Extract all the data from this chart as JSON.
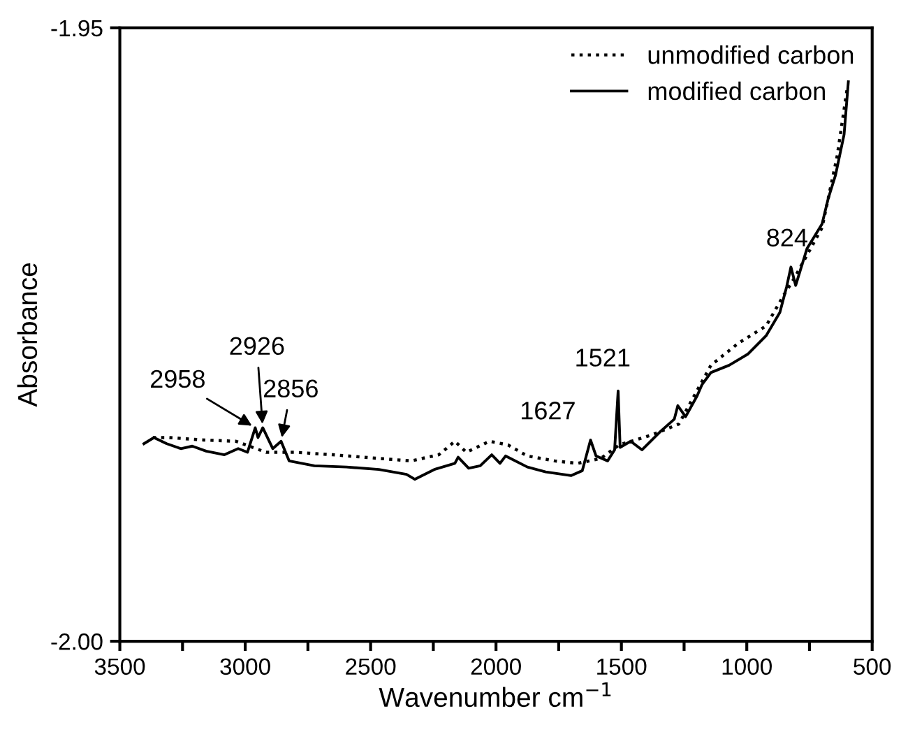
{
  "chart_data": {
    "type": "line",
    "xlabel": "Wavenumber cm$^{−1}$",
    "ylabel": "Absorbance",
    "xlim": [
      3500,
      500
    ],
    "ylim": [
      -2.0,
      -1.95
    ],
    "xticks": [
      3500,
      {
        "value": 3250,
        "label": null
      },
      3000,
      {
        "value": 2750,
        "label": null
      },
      2500,
      {
        "value": 2250,
        "label": null
      },
      2000,
      {
        "value": 1750,
        "label": null
      },
      1500,
      {
        "value": 1250,
        "label": null
      },
      1000,
      {
        "value": 750,
        "label": null
      },
      500
    ],
    "yticks": [
      {
        "value": -2.0,
        "label": "-2.00"
      },
      {
        "value": -1.95,
        "label": "-1.95"
      }
    ],
    "grid": false,
    "legend": "top right",
    "series": [
      {
        "name": "unmodified carbon",
        "color": "#000000",
        "line_style": "dotted",
        "x": [
          3368,
          3303,
          3165,
          3037,
          2917,
          2798,
          2651,
          2467,
          2338,
          2228,
          2164,
          2118,
          2026,
          1952,
          1875,
          1766,
          1674,
          1582,
          1509,
          1381,
          1271,
          1143,
          1033,
          923,
          850,
          813,
          700,
          640,
          600
        ],
        "values": [
          -1.9834,
          -1.9834,
          -1.9836,
          -1.9837,
          -1.9846,
          -1.9846,
          -1.9848,
          -1.9851,
          -1.9853,
          -1.9848,
          -1.9837,
          -1.9846,
          -1.9837,
          -1.984,
          -1.9849,
          -1.9853,
          -1.9855,
          -1.9851,
          -1.984,
          -1.9832,
          -1.9823,
          -1.9775,
          -1.9757,
          -1.9743,
          -1.9717,
          -1.9705,
          -1.9663,
          -1.9605,
          -1.955
        ]
      },
      {
        "name": "modified carbon",
        "color": "#000000",
        "line_style": "solid",
        "x": [
          3404,
          3364,
          3313,
          3257,
          3211,
          3156,
          3083,
          3028,
          2991,
          2960,
          2949,
          2930,
          2890,
          2857,
          2825,
          2724,
          2596,
          2467,
          2357,
          2324,
          2246,
          2164,
          2151,
          2109,
          2063,
          2017,
          1984,
          1962,
          1875,
          1802,
          1701,
          1656,
          1623,
          1601,
          1555,
          1527,
          1513,
          1505,
          1463,
          1418,
          1344,
          1289,
          1275,
          1244,
          1198,
          1179,
          1143,
          1070,
          996,
          923,
          868,
          841,
          824,
          805,
          760,
          700,
          675,
          646,
          612,
          595
        ],
        "values": [
          -1.9839,
          -1.9834,
          -1.9839,
          -1.9843,
          -1.9841,
          -1.9845,
          -1.9848,
          -1.9843,
          -1.9846,
          -1.9826,
          -1.9834,
          -1.9826,
          -1.9843,
          -1.9837,
          -1.9853,
          -1.9857,
          -1.9858,
          -1.986,
          -1.9864,
          -1.9868,
          -1.986,
          -1.9855,
          -1.985,
          -1.9859,
          -1.9857,
          -1.9848,
          -1.9855,
          -1.9849,
          -1.9858,
          -1.9862,
          -1.9865,
          -1.9861,
          -1.9836,
          -1.9849,
          -1.9853,
          -1.9844,
          -1.9796,
          -1.9842,
          -1.9837,
          -1.9844,
          -1.9829,
          -1.9819,
          -1.9808,
          -1.9817,
          -1.98,
          -1.9791,
          -1.9781,
          -1.9775,
          -1.9766,
          -1.9751,
          -1.9732,
          -1.9711,
          -1.9695,
          -1.971,
          -1.968,
          -1.966,
          -1.9639,
          -1.962,
          -1.9587,
          -1.9544
        ]
      }
    ],
    "annotations": [
      {
        "text": "2958",
        "x": 2960,
        "y": -1.9826
      },
      {
        "text": "2926",
        "x": 2930,
        "y": -1.9826
      },
      {
        "text": "2856",
        "x": 2857,
        "y": -1.9837
      },
      {
        "text": "1627",
        "x": 1623,
        "y": -1.9836
      },
      {
        "text": "1521",
        "x": 1513,
        "y": -1.9796
      },
      {
        "text": "824",
        "x": 824,
        "y": -1.9695
      }
    ]
  }
}
